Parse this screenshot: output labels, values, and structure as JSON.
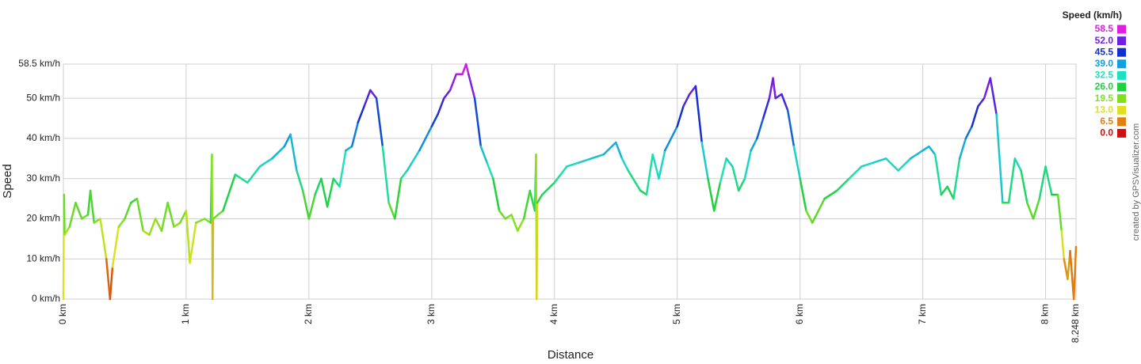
{
  "chart_data": {
    "type": "line",
    "x_label": "Distance",
    "y_label": "Speed",
    "credit": "created by GPSVisualizer.com",
    "xlim": [
      0,
      8.248
    ],
    "ylim": [
      0,
      58.5
    ],
    "grid": true,
    "xticks": [
      {
        "value": 0,
        "label": "0 km"
      },
      {
        "value": 1,
        "label": "1 km"
      },
      {
        "value": 2,
        "label": "2 km"
      },
      {
        "value": 3,
        "label": "3 km"
      },
      {
        "value": 4,
        "label": "4 km"
      },
      {
        "value": 5,
        "label": "5 km"
      },
      {
        "value": 6,
        "label": "6 km"
      },
      {
        "value": 7,
        "label": "7 km"
      },
      {
        "value": 8,
        "label": "8 km"
      },
      {
        "value": 8.248,
        "label": "8.248 km"
      }
    ],
    "yticks": [
      {
        "value": 0,
        "label": "0 km/h"
      },
      {
        "value": 10,
        "label": "10 km/h"
      },
      {
        "value": 20,
        "label": "20 km/h"
      },
      {
        "value": 30,
        "label": "30 km/h"
      },
      {
        "value": 40,
        "label": "40 km/h"
      },
      {
        "value": 50,
        "label": "50 km/h"
      },
      {
        "value": 58.5,
        "label": "58.5 km/h"
      }
    ],
    "color_scale": {
      "title": "Speed (km/h)",
      "stops": [
        {
          "value": 58.5,
          "label": "58.5",
          "color": "#e020e0"
        },
        {
          "value": 52,
          "label": "52.0",
          "color": "#7020e0"
        },
        {
          "value": 45.5,
          "label": "45.5",
          "color": "#1030d0"
        },
        {
          "value": 39,
          "label": "39.0",
          "color": "#10a0e0"
        },
        {
          "value": 32.5,
          "label": "32.5",
          "color": "#20e0c0"
        },
        {
          "value": 26,
          "label": "26.0",
          "color": "#20d040"
        },
        {
          "value": 19.5,
          "label": "19.5",
          "color": "#80e020"
        },
        {
          "value": 13,
          "label": "13.0",
          "color": "#e0e020"
        },
        {
          "value": 6.5,
          "label": "6.5",
          "color": "#e08010"
        },
        {
          "value": 0,
          "label": "0.0",
          "color": "#d01010"
        }
      ]
    },
    "x": [
      0,
      0.005,
      0.01,
      0.05,
      0.1,
      0.15,
      0.2,
      0.22,
      0.25,
      0.3,
      0.35,
      0.38,
      0.4,
      0.45,
      0.5,
      0.55,
      0.6,
      0.65,
      0.7,
      0.75,
      0.8,
      0.85,
      0.9,
      0.95,
      1.0,
      1.03,
      1.08,
      1.15,
      1.2,
      1.21,
      1.215,
      1.22,
      1.3,
      1.4,
      1.5,
      1.6,
      1.7,
      1.8,
      1.85,
      1.9,
      1.95,
      2.0,
      2.05,
      2.1,
      2.15,
      2.2,
      2.25,
      2.3,
      2.35,
      2.4,
      2.45,
      2.5,
      2.55,
      2.6,
      2.65,
      2.7,
      2.75,
      2.8,
      2.9,
      3.0,
      3.05,
      3.1,
      3.15,
      3.2,
      3.25,
      3.28,
      3.3,
      3.35,
      3.4,
      3.45,
      3.5,
      3.55,
      3.6,
      3.65,
      3.7,
      3.75,
      3.8,
      3.84,
      3.85,
      3.855,
      3.86,
      3.9,
      4.0,
      4.05,
      4.1,
      4.2,
      4.3,
      4.4,
      4.5,
      4.55,
      4.6,
      4.7,
      4.75,
      4.8,
      4.85,
      4.9,
      5.0,
      5.05,
      5.1,
      5.15,
      5.2,
      5.25,
      5.3,
      5.35,
      5.4,
      5.45,
      5.5,
      5.55,
      5.6,
      5.65,
      5.7,
      5.75,
      5.78,
      5.8,
      5.85,
      5.9,
      5.95,
      6.0,
      6.05,
      6.1,
      6.2,
      6.3,
      6.4,
      6.5,
      6.6,
      6.7,
      6.8,
      6.9,
      7.0,
      7.05,
      7.1,
      7.15,
      7.2,
      7.25,
      7.3,
      7.35,
      7.4,
      7.45,
      7.5,
      7.55,
      7.6,
      7.65,
      7.7,
      7.75,
      7.8,
      7.85,
      7.9,
      7.95,
      8.0,
      8.05,
      8.1,
      8.13,
      8.15,
      8.18,
      8.2,
      8.23,
      8.248
    ],
    "values": [
      0,
      26,
      16,
      18,
      24,
      20,
      21,
      27,
      19,
      20,
      10,
      0,
      8,
      18,
      20,
      24,
      25,
      17,
      16,
      20,
      17,
      24,
      18,
      19,
      22,
      9,
      19,
      20,
      19,
      36,
      0,
      20,
      22,
      31,
      29,
      33,
      35,
      38,
      41,
      32,
      27,
      20,
      26,
      30,
      23,
      30,
      28,
      37,
      38,
      44,
      48,
      52,
      50,
      38,
      24,
      20,
      30,
      32,
      37,
      43,
      46,
      50,
      52,
      56,
      56,
      58.5,
      56,
      50,
      38,
      34,
      30,
      22,
      20,
      21,
      17,
      20,
      27,
      22,
      36,
      0,
      24,
      26,
      29,
      31,
      33,
      34,
      35,
      36,
      39,
      35,
      32,
      27,
      26,
      36,
      30,
      37,
      43,
      48,
      51,
      53,
      39,
      30,
      22,
      29,
      35,
      33,
      27,
      30,
      37,
      40,
      45,
      50,
      55,
      50,
      51,
      47,
      38,
      30,
      22,
      19,
      25,
      27,
      30,
      33,
      34,
      35,
      32,
      35,
      37,
      38,
      36,
      26,
      28,
      25,
      35,
      40,
      43,
      48,
      50,
      55,
      46,
      24,
      24,
      35,
      32,
      24,
      20,
      25,
      33,
      26,
      26,
      17,
      10,
      5,
      12,
      0,
      13
    ]
  }
}
